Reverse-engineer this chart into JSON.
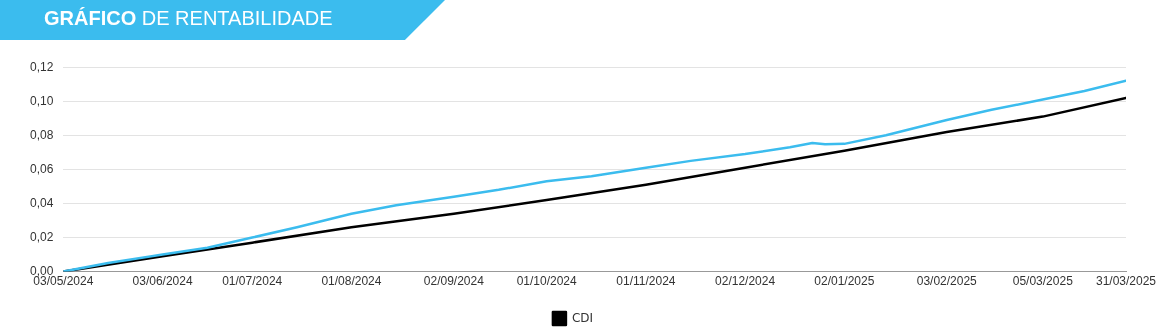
{
  "chart_data": {
    "type": "line",
    "title": "GRÁFICO DE RENTABILIDADE",
    "xlim": [
      "2024-05-03",
      "2025-03-31"
    ],
    "xticks": [
      {
        "value": "2024-05-03",
        "label": "03/05/2024"
      },
      {
        "value": "2024-06-03",
        "label": "03/06/2024"
      },
      {
        "value": "2024-07-01",
        "label": "01/07/2024"
      },
      {
        "value": "2024-08-01",
        "label": "01/08/2024"
      },
      {
        "value": "2024-09-02",
        "label": "02/09/2024"
      },
      {
        "value": "2024-10-01",
        "label": "01/10/2024"
      },
      {
        "value": "2024-11-01",
        "label": "01/11/2024"
      },
      {
        "value": "2024-12-02",
        "label": "02/12/2024"
      },
      {
        "value": "2025-01-02",
        "label": "02/01/2025"
      },
      {
        "value": "2025-02-03",
        "label": "03/02/2025"
      },
      {
        "value": "2025-03-05",
        "label": "05/03/2025"
      },
      {
        "value": "2025-03-31",
        "label": "31/03/2025"
      }
    ],
    "ylim": [
      0,
      0.12
    ],
    "yticks": [
      {
        "value": 0,
        "label": "0,00"
      },
      {
        "value": 0.02,
        "label": "0,02"
      },
      {
        "value": 0.04,
        "label": "0,04"
      },
      {
        "value": 0.06,
        "label": "0,06"
      },
      {
        "value": 0.08,
        "label": "0,08"
      },
      {
        "value": 0.1,
        "label": "0,10"
      },
      {
        "value": 0.12,
        "label": "0,12"
      }
    ],
    "grid": "y",
    "legend": "bottom",
    "marker": "none",
    "line_style": "solid",
    "series": [
      {
        "color": "#3bbcee",
        "x": [
          "2024-05-03",
          "2024-05-17",
          "2024-06-03",
          "2024-06-17",
          "2024-07-01",
          "2024-07-15",
          "2024-08-01",
          "2024-08-15",
          "2024-09-02",
          "2024-09-16",
          "2024-10-01",
          "2024-10-15",
          "2024-11-01",
          "2024-11-15",
          "2024-12-02",
          "2024-12-16",
          "2024-12-23",
          "2024-12-27",
          "2025-01-02",
          "2025-01-15",
          "2025-02-03",
          "2025-02-17",
          "2025-03-05",
          "2025-03-18",
          "2025-03-31"
        ],
        "values": [
          0,
          0.005,
          0.01,
          0.014,
          0.02,
          0.026,
          0.034,
          0.039,
          0.044,
          0.048,
          0.053,
          0.056,
          0.061,
          0.065,
          0.069,
          0.073,
          0.0755,
          0.0748,
          0.075,
          0.08,
          0.089,
          0.095,
          0.101,
          0.106,
          0.112
        ]
      },
      {
        "name": "CDI",
        "color": "#000000",
        "x": [
          "2024-05-03",
          "2024-06-03",
          "2024-07-01",
          "2024-08-01",
          "2024-09-02",
          "2024-10-01",
          "2024-11-01",
          "2024-12-02",
          "2025-01-02",
          "2025-02-03",
          "2025-03-05",
          "2025-03-31"
        ],
        "values": [
          0,
          0.009,
          0.017,
          0.026,
          0.034,
          0.042,
          0.051,
          0.061,
          0.071,
          0.082,
          0.091,
          0.102
        ]
      }
    ]
  }
}
